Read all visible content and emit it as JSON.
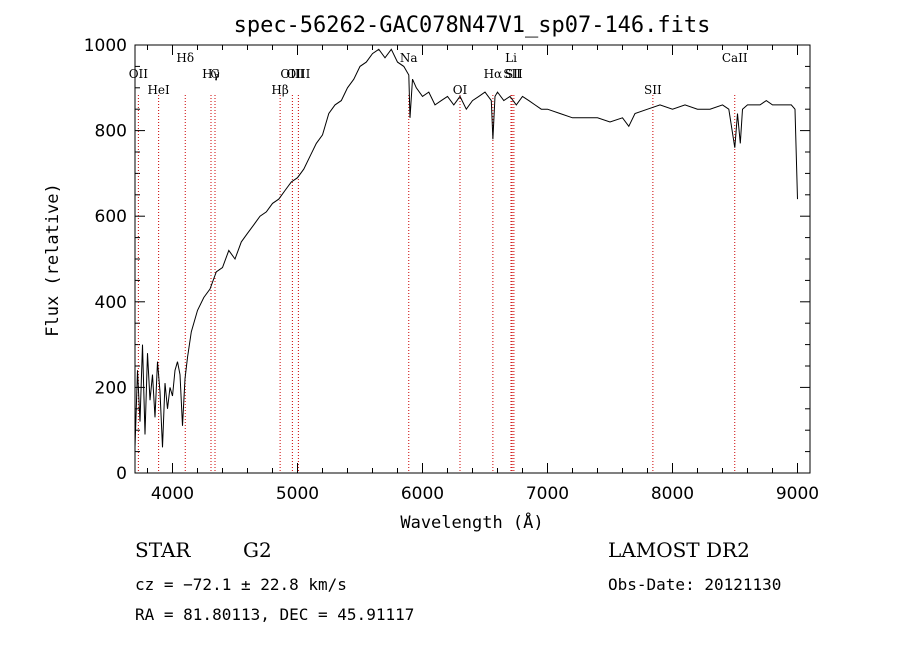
{
  "chart_data": {
    "type": "line",
    "title": "spec-56262-GAC078N47V1_sp07-146.fits",
    "xlabel": "Wavelength (Å)",
    "ylabel": "Flux (relative)",
    "xlim": [
      3700,
      9100
    ],
    "ylim": [
      0,
      1000
    ],
    "x_ticks": [
      4000,
      5000,
      6000,
      7000,
      8000,
      9000
    ],
    "y_ticks": [
      0,
      200,
      400,
      600,
      800,
      1000
    ],
    "grid": false,
    "line_color": "#000000",
    "marker_color": "#cc0000",
    "series": [
      {
        "x": [
          3700,
          3720,
          3740,
          3760,
          3780,
          3800,
          3820,
          3840,
          3860,
          3880,
          3900,
          3920,
          3940,
          3960,
          3980,
          4000,
          4020,
          4040,
          4060,
          4080,
          4100,
          4120,
          4150,
          4200,
          4250,
          4300,
          4350,
          4400,
          4450,
          4500,
          4550,
          4600,
          4650,
          4700,
          4750,
          4800,
          4850,
          4900,
          4950,
          5000,
          5050,
          5100,
          5150,
          5200,
          5250,
          5300,
          5350,
          5400,
          5450,
          5500,
          5550,
          5600,
          5650,
          5700,
          5750,
          5800,
          5850,
          5890,
          5900,
          5920,
          5950,
          6000,
          6050,
          6100,
          6150,
          6200,
          6250,
          6300,
          6350,
          6400,
          6450,
          6500,
          6550,
          6563,
          6580,
          6600,
          6650,
          6700,
          6750,
          6800,
          6850,
          6900,
          6950,
          7000,
          7100,
          7200,
          7300,
          7400,
          7500,
          7600,
          7650,
          7700,
          7800,
          7900,
          8000,
          8100,
          8200,
          8300,
          8400,
          8450,
          8498,
          8520,
          8542,
          8560,
          8600,
          8662,
          8700,
          8750,
          8800,
          8850,
          8900,
          8950,
          8980,
          9000
        ],
        "y": [
          60,
          240,
          120,
          300,
          90,
          280,
          170,
          230,
          130,
          260,
          190,
          60,
          210,
          150,
          200,
          180,
          240,
          260,
          230,
          110,
          220,
          270,
          330,
          380,
          410,
          430,
          470,
          480,
          520,
          500,
          540,
          560,
          580,
          600,
          610,
          630,
          640,
          660,
          680,
          690,
          710,
          740,
          770,
          790,
          840,
          860,
          870,
          900,
          920,
          950,
          960,
          980,
          990,
          970,
          990,
          960,
          950,
          930,
          830,
          920,
          900,
          880,
          890,
          860,
          870,
          880,
          860,
          880,
          850,
          870,
          880,
          890,
          870,
          780,
          880,
          890,
          870,
          880,
          860,
          880,
          870,
          860,
          850,
          850,
          840,
          830,
          830,
          830,
          820,
          830,
          810,
          840,
          850,
          860,
          850,
          860,
          850,
          850,
          860,
          850,
          760,
          840,
          770,
          850,
          860,
          860,
          860,
          870,
          860,
          860,
          860,
          860,
          850,
          640
        ]
      }
    ],
    "line_markers": [
      {
        "label": "OII",
        "x": 3727
      },
      {
        "label": "HeI",
        "x": 3889
      },
      {
        "label": "Hδ",
        "x": 4102
      },
      {
        "label": "Hγ",
        "x": 4308
      },
      {
        "label": "G",
        "x": 4340
      },
      {
        "label": "Hβ",
        "x": 4861
      },
      {
        "label": "OIII",
        "x": 4959
      },
      {
        "label": "OIII",
        "x": 5007
      },
      {
        "label": "Na",
        "x": 5890
      },
      {
        "label": "OI",
        "x": 6300
      },
      {
        "label": "Hα",
        "x": 6563
      },
      {
        "label": "Li",
        "x": 6708
      },
      {
        "label": "SII",
        "x": 6717
      },
      {
        "label": "SII",
        "x": 6731
      },
      {
        "label": "SII",
        "x": 7843
      },
      {
        "label": "CaII",
        "x": 8498
      }
    ]
  },
  "info": {
    "object_class": "STAR",
    "subclass": "G2",
    "survey": "LAMOST DR2",
    "redshift_line": "cz = −72.1 ± 22.8 km/s",
    "obs_date_line": "Obs-Date: 20121130",
    "coords_line": "RA =  81.80113, DEC =  45.91117"
  }
}
